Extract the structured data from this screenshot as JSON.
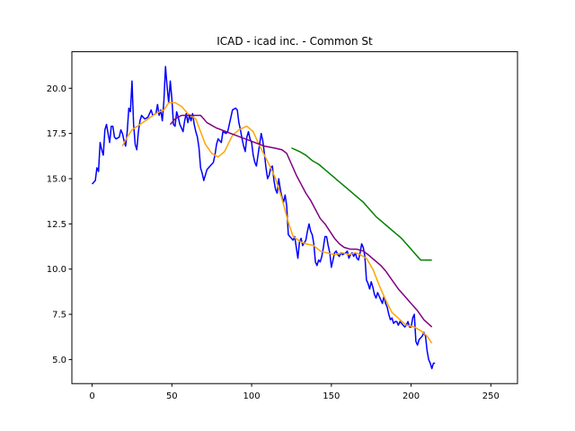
{
  "chart_data": {
    "type": "line",
    "title": "ICAD - icad inc. - Common St",
    "xlabel": "",
    "ylabel": "",
    "xlim": [
      -12.7,
      266.7
    ],
    "ylim": [
      3.67,
      22.02
    ],
    "xticks": [
      0,
      50,
      100,
      150,
      200,
      250
    ],
    "yticks": [
      5.0,
      7.5,
      10.0,
      12.5,
      15.0,
      17.5,
      20.0
    ],
    "ytick_labels": [
      "5.0",
      "7.5",
      "10.0",
      "12.5",
      "15.0",
      "17.5",
      "20.0"
    ],
    "grid": false,
    "legend": "none",
    "series": [
      {
        "color": "#0000ff",
        "points": [
          [
            0,
            14.7
          ],
          [
            2,
            14.9
          ],
          [
            3,
            15.6
          ],
          [
            4,
            15.4
          ],
          [
            5,
            17.0
          ],
          [
            6,
            16.6
          ],
          [
            7,
            16.3
          ],
          [
            8,
            17.7
          ],
          [
            9,
            18.0
          ],
          [
            10,
            17.5
          ],
          [
            11,
            17.0
          ],
          [
            12,
            17.9
          ],
          [
            13,
            17.9
          ],
          [
            14,
            17.3
          ],
          [
            15,
            17.2
          ],
          [
            17,
            17.3
          ],
          [
            18,
            17.7
          ],
          [
            19,
            17.5
          ],
          [
            20,
            17.1
          ],
          [
            21,
            16.8
          ],
          [
            22,
            17.6
          ],
          [
            23,
            18.9
          ],
          [
            24,
            18.7
          ],
          [
            25,
            20.4
          ],
          [
            26,
            18.0
          ],
          [
            27,
            16.9
          ],
          [
            28,
            16.6
          ],
          [
            29,
            17.6
          ],
          [
            30,
            18.2
          ],
          [
            31,
            18.5
          ],
          [
            33,
            18.3
          ],
          [
            35,
            18.4
          ],
          [
            36,
            18.6
          ],
          [
            37,
            18.8
          ],
          [
            38,
            18.5
          ],
          [
            40,
            18.6
          ],
          [
            41,
            19.1
          ],
          [
            42,
            18.5
          ],
          [
            43,
            18.8
          ],
          [
            44,
            18.2
          ],
          [
            45,
            19.3
          ],
          [
            46,
            21.2
          ],
          [
            47,
            20.1
          ],
          [
            48,
            19.2
          ],
          [
            49,
            20.4
          ],
          [
            50,
            19.4
          ],
          [
            51,
            18.0
          ],
          [
            52,
            17.9
          ],
          [
            53,
            18.7
          ],
          [
            54,
            18.4
          ],
          [
            55,
            18.0
          ],
          [
            56,
            17.8
          ],
          [
            57,
            17.6
          ],
          [
            58,
            18.2
          ],
          [
            59,
            18.6
          ],
          [
            60,
            18.1
          ],
          [
            61,
            18.5
          ],
          [
            62,
            18.2
          ],
          [
            63,
            18.6
          ],
          [
            64,
            18.0
          ],
          [
            65,
            17.6
          ],
          [
            66,
            17.3
          ],
          [
            67,
            16.7
          ],
          [
            68,
            15.6
          ],
          [
            69,
            15.3
          ],
          [
            70,
            14.9
          ],
          [
            72,
            15.5
          ],
          [
            74,
            15.7
          ],
          [
            76,
            15.9
          ],
          [
            77,
            16.3
          ],
          [
            78,
            16.9
          ],
          [
            79,
            17.2
          ],
          [
            81,
            17.0
          ],
          [
            82,
            17.6
          ],
          [
            84,
            17.5
          ],
          [
            85,
            17.6
          ],
          [
            86,
            18.0
          ],
          [
            88,
            18.8
          ],
          [
            90,
            18.9
          ],
          [
            91,
            18.8
          ],
          [
            92,
            18.1
          ],
          [
            93,
            17.7
          ],
          [
            94,
            17.2
          ],
          [
            95,
            16.8
          ],
          [
            96,
            16.5
          ],
          [
            97,
            17.3
          ],
          [
            98,
            17.6
          ],
          [
            99,
            17.2
          ],
          [
            100,
            17.0
          ],
          [
            101,
            16.3
          ],
          [
            102,
            15.9
          ],
          [
            103,
            15.7
          ],
          [
            104,
            16.3
          ],
          [
            105,
            16.9
          ],
          [
            106,
            17.5
          ],
          [
            107,
            17.1
          ],
          [
            108,
            16.4
          ],
          [
            109,
            15.6
          ],
          [
            110,
            15.0
          ],
          [
            111,
            15.2
          ],
          [
            112,
            15.6
          ],
          [
            113,
            15.7
          ],
          [
            114,
            14.9
          ],
          [
            115,
            14.4
          ],
          [
            116,
            14.2
          ],
          [
            117,
            15.0
          ],
          [
            118,
            14.4
          ],
          [
            119,
            14.0
          ],
          [
            120,
            13.7
          ],
          [
            121,
            14.1
          ],
          [
            122,
            13.5
          ],
          [
            123,
            11.9
          ],
          [
            124,
            11.8
          ],
          [
            126,
            11.6
          ],
          [
            127,
            11.8
          ],
          [
            128,
            11.2
          ],
          [
            129,
            10.6
          ],
          [
            130,
            11.5
          ],
          [
            131,
            11.7
          ],
          [
            132,
            11.3
          ],
          [
            134,
            11.6
          ],
          [
            135,
            12.1
          ],
          [
            136,
            12.5
          ],
          [
            137,
            12.1
          ],
          [
            138,
            11.9
          ],
          [
            139,
            11.4
          ],
          [
            140,
            10.4
          ],
          [
            141,
            10.2
          ],
          [
            142,
            10.5
          ],
          [
            143,
            10.4
          ],
          [
            144,
            10.7
          ],
          [
            145,
            11.2
          ],
          [
            146,
            11.8
          ],
          [
            147,
            11.8
          ],
          [
            148,
            11.3
          ],
          [
            149,
            10.9
          ],
          [
            150,
            10.1
          ],
          [
            151,
            10.5
          ],
          [
            152,
            10.9
          ],
          [
            153,
            11.0
          ],
          [
            154,
            10.8
          ],
          [
            155,
            10.7
          ],
          [
            156,
            10.9
          ],
          [
            157,
            10.8
          ],
          [
            159,
            10.9
          ],
          [
            160,
            11.0
          ],
          [
            161,
            10.6
          ],
          [
            162,
            10.8
          ],
          [
            163,
            10.9
          ],
          [
            164,
            10.7
          ],
          [
            165,
            10.9
          ],
          [
            166,
            10.6
          ],
          [
            167,
            10.5
          ],
          [
            168,
            10.9
          ],
          [
            169,
            11.4
          ],
          [
            170,
            11.2
          ],
          [
            171,
            10.7
          ],
          [
            172,
            9.4
          ],
          [
            173,
            9.2
          ],
          [
            174,
            8.9
          ],
          [
            175,
            9.3
          ],
          [
            176,
            9.0
          ],
          [
            177,
            8.6
          ],
          [
            178,
            8.4
          ],
          [
            179,
            8.7
          ],
          [
            181,
            8.3
          ],
          [
            182,
            8.1
          ],
          [
            183,
            8.5
          ],
          [
            184,
            8.1
          ],
          [
            185,
            7.9
          ],
          [
            186,
            7.5
          ],
          [
            187,
            7.2
          ],
          [
            188,
            7.3
          ],
          [
            189,
            7.0
          ],
          [
            190,
            7.1
          ],
          [
            191,
            7.1
          ],
          [
            192,
            6.9
          ],
          [
            193,
            7.1
          ],
          [
            194,
            7.0
          ],
          [
            195,
            6.9
          ],
          [
            196,
            6.8
          ],
          [
            197,
            6.9
          ],
          [
            198,
            7.1
          ],
          [
            199,
            6.8
          ],
          [
            200,
            6.8
          ],
          [
            201,
            7.3
          ],
          [
            202,
            7.5
          ],
          [
            203,
            6.0
          ],
          [
            204,
            5.8
          ],
          [
            205,
            6.1
          ],
          [
            206,
            6.2
          ],
          [
            207,
            6.3
          ],
          [
            208,
            6.5
          ],
          [
            209,
            6.3
          ],
          [
            210,
            5.5
          ],
          [
            211,
            5.0
          ],
          [
            212,
            4.8
          ],
          [
            213,
            4.5
          ],
          [
            214,
            4.8
          ],
          [
            215,
            4.8
          ]
        ]
      },
      {
        "color": "#ffa500",
        "points": [
          [
            19,
            16.8
          ],
          [
            22,
            17.3
          ],
          [
            25,
            17.7
          ],
          [
            30,
            18.0
          ],
          [
            35,
            18.3
          ],
          [
            40,
            18.6
          ],
          [
            45,
            18.8
          ],
          [
            48,
            19.2
          ],
          [
            52,
            19.2
          ],
          [
            56,
            19.0
          ],
          [
            60,
            18.6
          ],
          [
            65,
            18.3
          ],
          [
            68,
            17.6
          ],
          [
            71,
            16.9
          ],
          [
            75,
            16.4
          ],
          [
            79,
            16.2
          ],
          [
            83,
            16.5
          ],
          [
            88,
            17.4
          ],
          [
            92,
            17.7
          ],
          [
            97,
            17.9
          ],
          [
            101,
            17.6
          ],
          [
            104,
            17.0
          ],
          [
            108,
            16.3
          ],
          [
            112,
            15.6
          ],
          [
            115,
            15.0
          ],
          [
            119,
            13.9
          ],
          [
            123,
            12.6
          ],
          [
            126,
            11.8
          ],
          [
            131,
            11.5
          ],
          [
            134,
            11.4
          ],
          [
            139,
            11.3
          ],
          [
            143,
            11.0
          ],
          [
            147,
            10.9
          ],
          [
            152,
            10.8
          ],
          [
            157,
            10.9
          ],
          [
            161,
            10.8
          ],
          [
            165,
            10.9
          ],
          [
            168,
            10.8
          ],
          [
            172,
            10.6
          ],
          [
            176,
            10.0
          ],
          [
            180,
            9.1
          ],
          [
            184,
            8.3
          ],
          [
            188,
            7.6
          ],
          [
            193,
            7.2
          ],
          [
            197,
            6.9
          ],
          [
            202,
            6.8
          ],
          [
            206,
            6.6
          ],
          [
            210,
            6.3
          ],
          [
            213,
            5.9
          ]
        ]
      },
      {
        "color": "#800080",
        "points": [
          [
            49,
            18.0
          ],
          [
            52,
            18.3
          ],
          [
            56,
            18.5
          ],
          [
            62,
            18.5
          ],
          [
            68,
            18.5
          ],
          [
            72,
            18.1
          ],
          [
            78,
            17.8
          ],
          [
            84,
            17.6
          ],
          [
            90,
            17.4
          ],
          [
            96,
            17.2
          ],
          [
            102,
            17.0
          ],
          [
            108,
            16.8
          ],
          [
            114,
            16.7
          ],
          [
            119,
            16.6
          ],
          [
            122,
            16.4
          ],
          [
            125,
            15.8
          ],
          [
            128,
            15.2
          ],
          [
            131,
            14.7
          ],
          [
            134,
            14.2
          ],
          [
            137,
            13.8
          ],
          [
            140,
            13.3
          ],
          [
            143,
            12.8
          ],
          [
            146,
            12.5
          ],
          [
            149,
            12.1
          ],
          [
            152,
            11.7
          ],
          [
            155,
            11.4
          ],
          [
            158,
            11.2
          ],
          [
            162,
            11.1
          ],
          [
            166,
            11.1
          ],
          [
            170,
            11.0
          ],
          [
            173,
            10.8
          ],
          [
            177,
            10.5
          ],
          [
            181,
            10.2
          ],
          [
            184,
            9.9
          ],
          [
            188,
            9.4
          ],
          [
            192,
            8.9
          ],
          [
            196,
            8.5
          ],
          [
            200,
            8.1
          ],
          [
            204,
            7.7
          ],
          [
            208,
            7.2
          ],
          [
            213,
            6.8
          ]
        ]
      },
      {
        "color": "#008000",
        "points": [
          [
            125,
            16.7
          ],
          [
            130,
            16.5
          ],
          [
            134,
            16.3
          ],
          [
            138,
            16.0
          ],
          [
            142,
            15.8
          ],
          [
            146,
            15.5
          ],
          [
            150,
            15.2
          ],
          [
            154,
            14.9
          ],
          [
            158,
            14.6
          ],
          [
            162,
            14.3
          ],
          [
            166,
            14.0
          ],
          [
            170,
            13.7
          ],
          [
            174,
            13.3
          ],
          [
            178,
            12.9
          ],
          [
            182,
            12.6
          ],
          [
            186,
            12.3
          ],
          [
            190,
            12.0
          ],
          [
            194,
            11.7
          ],
          [
            198,
            11.3
          ],
          [
            202,
            10.9
          ],
          [
            206,
            10.5
          ],
          [
            213,
            10.5
          ]
        ]
      }
    ]
  }
}
